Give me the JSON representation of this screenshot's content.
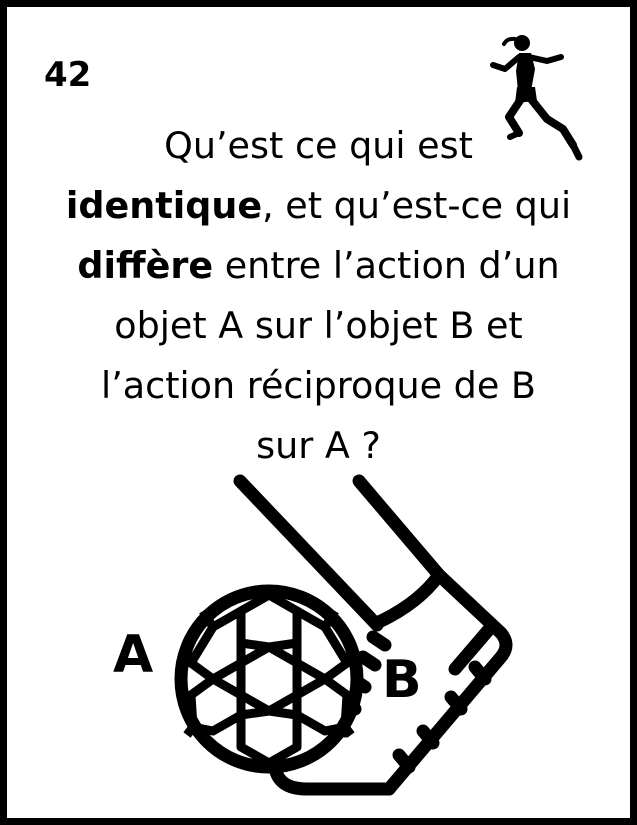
{
  "card": {
    "number": "42",
    "question_lines": [
      [
        {
          "text": "Qu’est ce qui est",
          "bold": false
        }
      ],
      [
        {
          "text": "identique",
          "bold": true
        },
        {
          "text": ", et qu’est-ce qui",
          "bold": false
        }
      ],
      [
        {
          "text": "diffère",
          "bold": true
        },
        {
          "text": " entre l’action d’un",
          "bold": false
        }
      ],
      [
        {
          "text": "objet A sur l’objet B et",
          "bold": false
        }
      ],
      [
        {
          "text": "l’action réciproque de B",
          "bold": false
        }
      ],
      [
        {
          "text": "sur A ?",
          "bold": false
        }
      ]
    ]
  },
  "labels": {
    "a": "A",
    "b": "B"
  },
  "icons": {
    "runner": "running-woman-icon",
    "ball": "soccer-ball-icon",
    "boot": "soccer-boot-icon"
  },
  "colors": {
    "ink": "#000000",
    "paper": "#ffffff"
  }
}
